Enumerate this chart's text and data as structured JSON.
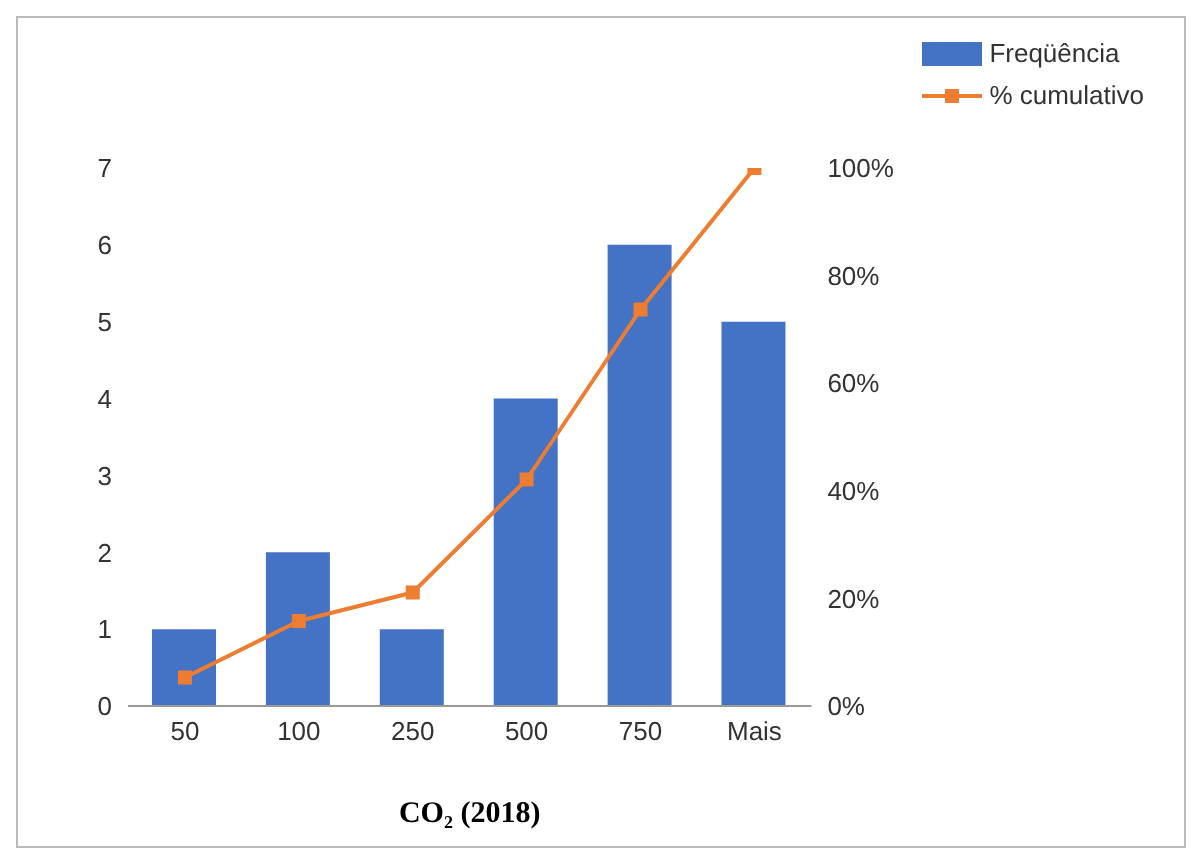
{
  "chart_data": {
    "type": "bar",
    "xlabel": "CO₂ (2018)",
    "categories": [
      "50",
      "100",
      "250",
      "500",
      "750",
      "Mais"
    ],
    "series": [
      {
        "name": "Freqüência",
        "color": "#4472c4",
        "values": [
          1,
          2,
          1,
          4,
          6,
          5
        ]
      },
      {
        "name": "% cumulativo",
        "type": "line",
        "axis": "y2",
        "color": "#ed7d31",
        "marker": "square",
        "values": [
          5.3,
          15.8,
          21.1,
          42.1,
          73.7,
          100
        ]
      }
    ],
    "ylim": [
      0,
      7
    ],
    "yticks": [
      0,
      1,
      2,
      3,
      4,
      5,
      6,
      7
    ],
    "y2lim": [
      0,
      100
    ],
    "y2ticks": [
      {
        "value": 0,
        "label": "0%"
      },
      {
        "value": 20,
        "label": "20%"
      },
      {
        "value": 40,
        "label": "40%"
      },
      {
        "value": 60,
        "label": "60%"
      },
      {
        "value": 80,
        "label": "80%"
      },
      {
        "value": 100,
        "label": "100%"
      }
    ],
    "legend": "top right"
  }
}
